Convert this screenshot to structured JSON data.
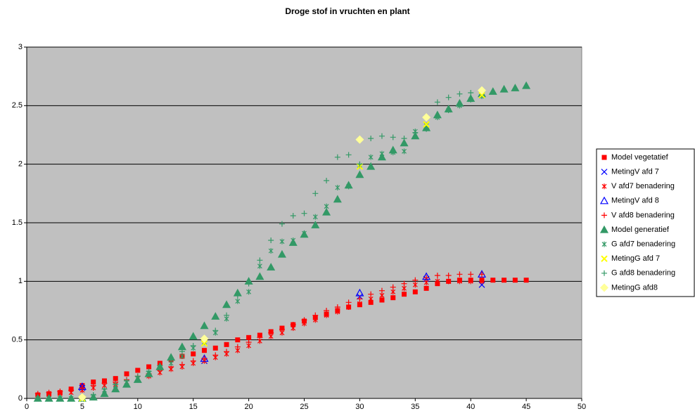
{
  "chart_data": {
    "type": "scatter",
    "title": "Droge stof in vruchten en plant",
    "xlim": [
      0,
      50
    ],
    "xticks": [
      0,
      5,
      10,
      15,
      20,
      25,
      30,
      35,
      40,
      45,
      50
    ],
    "ylim": [
      0,
      3
    ],
    "yticks": [
      0,
      0.5,
      1,
      1.5,
      2,
      2.5,
      3
    ],
    "grid": true,
    "legend": "right",
    "series": [
      {
        "name": "Model vegetatief",
        "color": "#ff0000",
        "marker": "square",
        "x": [
          1,
          2,
          3,
          4,
          5,
          6,
          7,
          8,
          9,
          10,
          11,
          12,
          13,
          14,
          15,
          16,
          17,
          18,
          19,
          20,
          21,
          22,
          23,
          24,
          25,
          26,
          27,
          28,
          29,
          30,
          31,
          32,
          33,
          34,
          35,
          36,
          37,
          38,
          39,
          40,
          41,
          42,
          43,
          44,
          45
        ],
        "values": [
          0.03,
          0.04,
          0.05,
          0.08,
          0.11,
          0.14,
          0.15,
          0.17,
          0.21,
          0.24,
          0.27,
          0.3,
          0.33,
          0.36,
          0.38,
          0.41,
          0.43,
          0.46,
          0.5,
          0.52,
          0.54,
          0.57,
          0.6,
          0.63,
          0.66,
          0.69,
          0.72,
          0.75,
          0.78,
          0.8,
          0.82,
          0.84,
          0.86,
          0.89,
          0.91,
          0.94,
          0.98,
          1.0,
          1.01,
          1.01,
          1.01,
          1.01,
          1.01,
          1.01,
          1.01
        ]
      },
      {
        "name": "MetingV afd 7",
        "color": "#0000ff",
        "marker": "x",
        "x": [
          5,
          16,
          30,
          36,
          41
        ],
        "values": [
          0.09,
          0.32,
          0.87,
          1.02,
          0.97
        ]
      },
      {
        "name": "V afd7 benadering",
        "color": "#ff0000",
        "marker": "asterisk",
        "x": [
          1,
          2,
          3,
          4,
          5,
          6,
          7,
          8,
          9,
          10,
          11,
          12,
          13,
          14,
          15,
          16,
          17,
          18,
          19,
          20,
          21,
          22,
          23,
          24,
          25,
          26,
          27,
          28,
          29,
          30,
          31,
          32,
          33,
          34,
          35,
          36,
          37,
          38,
          39,
          40,
          41
        ],
        "values": [
          0.02,
          0.03,
          0.04,
          0.05,
          0.07,
          0.09,
          0.11,
          0.12,
          0.14,
          0.17,
          0.19,
          0.22,
          0.25,
          0.27,
          0.3,
          0.32,
          0.35,
          0.38,
          0.41,
          0.45,
          0.49,
          0.53,
          0.56,
          0.6,
          0.64,
          0.67,
          0.71,
          0.74,
          0.78,
          0.81,
          0.85,
          0.88,
          0.91,
          0.94,
          0.97,
          0.99,
          1.0,
          1.0,
          1.0,
          1.0,
          1.0
        ]
      },
      {
        "name": "MetingV afd 8",
        "color": "#0000ff",
        "marker": "triangle-open",
        "x": [
          5,
          16,
          30,
          36,
          41
        ],
        "values": [
          0.1,
          0.34,
          0.9,
          1.04,
          1.06
        ]
      },
      {
        "name": "V afd8 benadering",
        "color": "#ff0000",
        "marker": "plus",
        "x": [
          1,
          2,
          3,
          4,
          5,
          6,
          7,
          8,
          9,
          10,
          11,
          12,
          13,
          14,
          15,
          16,
          17,
          18,
          19,
          20,
          21,
          22,
          23,
          24,
          25,
          26,
          27,
          28,
          29,
          30,
          31,
          32,
          33,
          34,
          35,
          36,
          37,
          38,
          39,
          40,
          41
        ],
        "values": [
          0.04,
          0.05,
          0.06,
          0.07,
          0.09,
          0.11,
          0.13,
          0.14,
          0.16,
          0.19,
          0.21,
          0.24,
          0.27,
          0.29,
          0.32,
          0.34,
          0.37,
          0.4,
          0.44,
          0.48,
          0.52,
          0.56,
          0.59,
          0.63,
          0.67,
          0.71,
          0.75,
          0.78,
          0.82,
          0.85,
          0.89,
          0.92,
          0.95,
          0.98,
          1.01,
          1.03,
          1.05,
          1.05,
          1.06,
          1.06,
          1.06
        ]
      },
      {
        "name": "Model generatief",
        "color": "#339966",
        "marker": "triangle",
        "x": [
          1,
          2,
          3,
          4,
          5,
          6,
          7,
          8,
          9,
          10,
          11,
          12,
          13,
          14,
          15,
          16,
          17,
          18,
          19,
          20,
          21,
          22,
          23,
          24,
          25,
          26,
          27,
          28,
          29,
          30,
          31,
          32,
          33,
          34,
          35,
          36,
          37,
          38,
          39,
          40,
          41,
          42,
          43,
          44,
          45
        ],
        "values": [
          0,
          0,
          0,
          0,
          0,
          0.01,
          0.04,
          0.08,
          0.12,
          0.16,
          0.21,
          0.27,
          0.35,
          0.44,
          0.53,
          0.62,
          0.7,
          0.8,
          0.9,
          1.0,
          1.04,
          1.12,
          1.23,
          1.33,
          1.4,
          1.48,
          1.59,
          1.7,
          1.82,
          1.91,
          1.98,
          2.06,
          2.12,
          2.18,
          2.24,
          2.31,
          2.42,
          2.47,
          2.52,
          2.56,
          2.6,
          2.62,
          2.64,
          2.65,
          2.67
        ]
      },
      {
        "name": "G afd7 benadering",
        "color": "#339966",
        "marker": "asterisk",
        "x": [
          1,
          2,
          3,
          4,
          5,
          6,
          7,
          8,
          9,
          10,
          11,
          12,
          13,
          14,
          15,
          16,
          17,
          18,
          19,
          20,
          21,
          22,
          23,
          24,
          25,
          26,
          27,
          28,
          29,
          30,
          31,
          32,
          33,
          34,
          35,
          36,
          37,
          38,
          39,
          40,
          41
        ],
        "values": [
          0,
          0,
          0,
          0,
          0,
          0.02,
          0.07,
          0.11,
          0.14,
          0.17,
          0.22,
          0.26,
          0.3,
          0.36,
          0.43,
          0.48,
          0.56,
          0.68,
          0.83,
          0.91,
          1.13,
          1.26,
          1.34,
          1.35,
          1.41,
          1.55,
          1.64,
          1.8,
          1.81,
          1.99,
          2.06,
          2.09,
          2.1,
          2.11,
          2.28,
          2.33,
          2.4,
          2.46,
          2.5,
          2.55,
          2.58
        ]
      },
      {
        "name": "MetingG afd 7",
        "color": "#ffff00",
        "marker": "x",
        "x": [
          5,
          16,
          30,
          36,
          41
        ],
        "values": [
          0,
          0.47,
          1.98,
          2.34,
          2.59
        ]
      },
      {
        "name": "G afd8 benadering",
        "color": "#339966",
        "marker": "plus",
        "x": [
          1,
          2,
          3,
          4,
          5,
          6,
          7,
          8,
          9,
          10,
          11,
          12,
          13,
          14,
          15,
          16,
          17,
          18,
          19,
          20,
          21,
          22,
          23,
          24,
          25,
          26,
          27,
          28,
          29,
          30,
          31,
          32,
          33,
          34,
          35,
          36,
          37,
          38,
          39,
          40,
          41
        ],
        "values": [
          0,
          0,
          0,
          0,
          0,
          0.03,
          0.08,
          0.12,
          0.15,
          0.19,
          0.23,
          0.28,
          0.33,
          0.4,
          0.45,
          0.52,
          0.58,
          0.71,
          0.88,
          0.98,
          1.18,
          1.35,
          1.49,
          1.56,
          1.58,
          1.75,
          1.86,
          2.06,
          2.08,
          2.0,
          2.22,
          2.24,
          2.23,
          2.22,
          2.27,
          2.3,
          2.53,
          2.57,
          2.6,
          2.61,
          2.62
        ]
      },
      {
        "name": "MetingG afd8",
        "color": "#ffff99",
        "marker": "diamond",
        "x": [
          5,
          16,
          30,
          36,
          41
        ],
        "values": [
          0.01,
          0.51,
          2.21,
          2.4,
          2.63
        ]
      }
    ]
  }
}
